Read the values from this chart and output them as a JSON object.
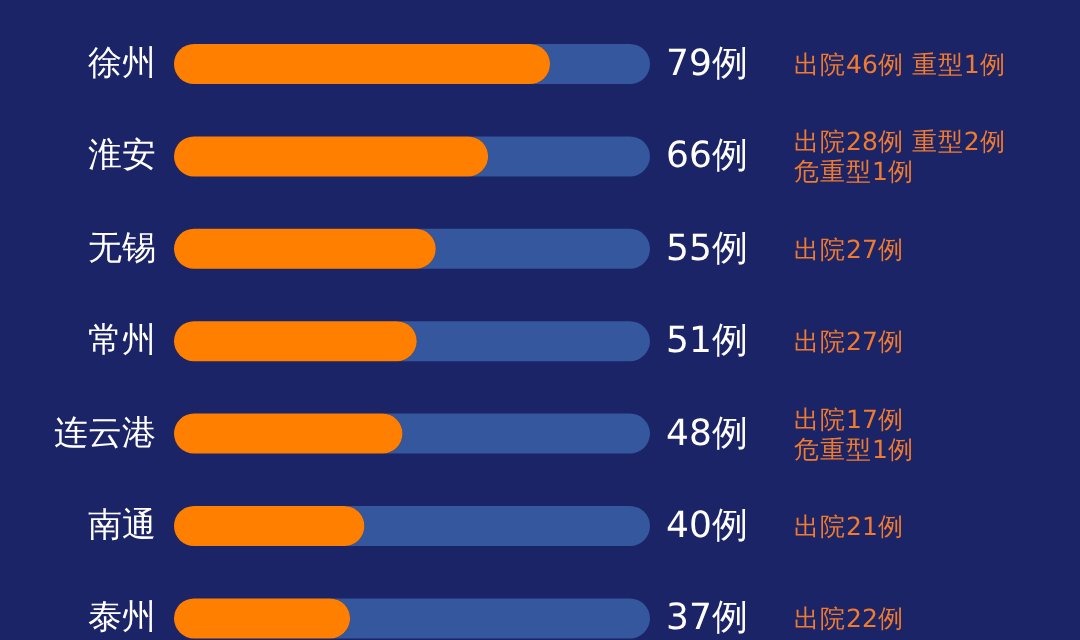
{
  "chart_data": {
    "type": "bar",
    "orientation": "horizontal",
    "categories": [
      "徐州",
      "淮安",
      "无锡",
      "常州",
      "连云港",
      "南通",
      "泰州"
    ],
    "values": [
      79,
      66,
      55,
      51,
      48,
      40,
      37
    ],
    "value_labels": [
      "79例",
      "66例",
      "55例",
      "51例",
      "48例",
      "40例",
      "37例"
    ],
    "color": "#ff8000",
    "xlim": [
      0,
      100
    ],
    "annotations": [
      "出院46例 重型1例",
      "出院28例 重型2例",
      "危重型1例",
      "出院27例",
      "出院27例",
      "出院17例",
      "危重型1例",
      "出院21例",
      "出院22例"
    ]
  }
}
